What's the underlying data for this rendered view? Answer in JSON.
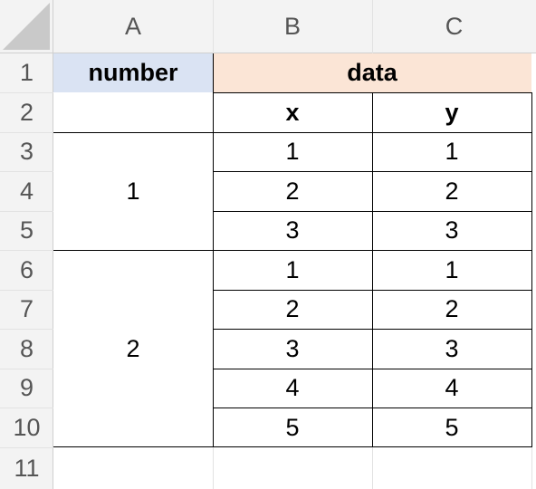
{
  "columns": [
    "A",
    "B",
    "C"
  ],
  "rows": [
    "1",
    "2",
    "3",
    "4",
    "5",
    "6",
    "7",
    "8",
    "9",
    "10",
    "11"
  ],
  "header_fills": {
    "number": "#dae3f3",
    "data": "#fbe5d6"
  },
  "cells": {
    "A1": "number",
    "B1": "data",
    "B2": "x",
    "C2": "y",
    "A3": "1",
    "A6": "2",
    "x_values": [
      "1",
      "2",
      "3",
      "1",
      "2",
      "3",
      "4",
      "5"
    ],
    "y_values": [
      "1",
      "2",
      "3",
      "1",
      "2",
      "3",
      "4",
      "5"
    ]
  }
}
